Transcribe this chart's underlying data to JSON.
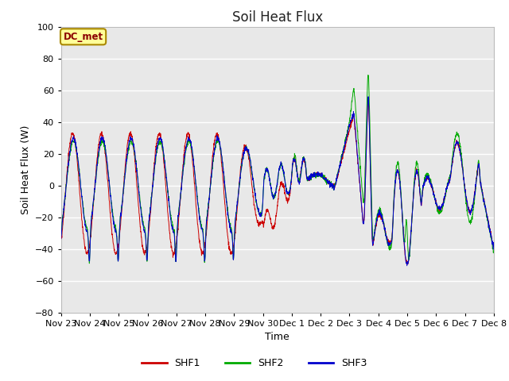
{
  "title": "Soil Heat Flux",
  "xlabel": "Time",
  "ylabel": "Soil Heat Flux (W)",
  "ylim": [
    -80,
    100
  ],
  "background_color": "#ffffff",
  "plot_bg_color": "#e8e8e8",
  "grid_color": "#ffffff",
  "series": {
    "SHF1": {
      "color": "#cc0000"
    },
    "SHF2": {
      "color": "#00aa00"
    },
    "SHF3": {
      "color": "#0000cc"
    }
  },
  "xtick_labels": [
    "Nov 23",
    "Nov 24",
    "Nov 25",
    "Nov 26",
    "Nov 27",
    "Nov 28",
    "Nov 29",
    "Nov 30",
    "Dec 1",
    "Dec 2",
    "Dec 3",
    "Dec 4",
    "Dec 5",
    "Dec 6",
    "Dec 7",
    "Dec 8"
  ],
  "legend_label": "DC_met",
  "legend_box_color": "#ffff99",
  "legend_box_edge": "#aa8800"
}
